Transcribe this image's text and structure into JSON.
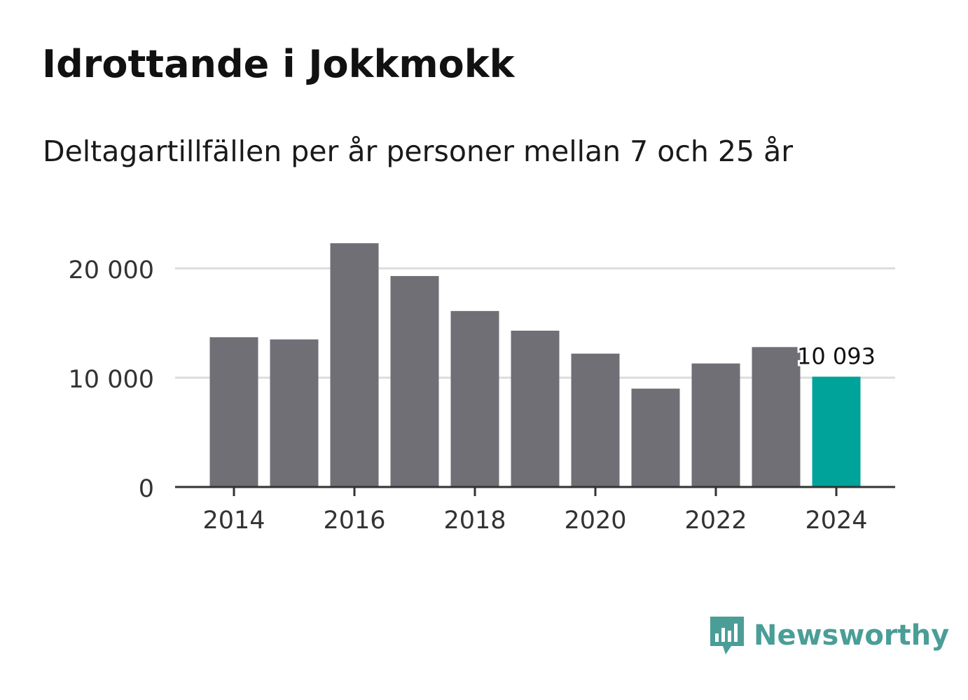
{
  "title": "Idrottande i Jokkmokk",
  "subtitle": "Deltagartillfällen per år personer mellan 7 och 25 år",
  "brand": {
    "name": "Newsworthy",
    "color": "#4a9e97"
  },
  "colors": {
    "bar": "#706f75",
    "highlight": "#00a39a",
    "grid": "#dcdcdc",
    "axis": "#333333",
    "text": "#333333"
  },
  "chart_data": {
    "type": "bar",
    "title": "Idrottande i Jokkmokk",
    "subtitle": "Deltagartillfällen per år personer mellan 7 och 25 år",
    "x": [
      2014,
      2015,
      2016,
      2017,
      2018,
      2019,
      2020,
      2021,
      2022,
      2023,
      2024
    ],
    "values": [
      13700,
      13500,
      22300,
      19300,
      16100,
      14300,
      12200,
      9000,
      11300,
      12800,
      10093
    ],
    "highlight_index": 10,
    "x_tick_labels": [
      "2014",
      "2016",
      "2018",
      "2020",
      "2022",
      "2024"
    ],
    "y_ticks": [
      0,
      10000,
      20000
    ],
    "y_tick_labels": [
      "0",
      "10 000",
      "20 000"
    ],
    "ylim": [
      0,
      24000
    ],
    "data_labels": [
      {
        "index": 10,
        "text": "10 093"
      }
    ],
    "grid": true,
    "xlabel": "",
    "ylabel": ""
  }
}
